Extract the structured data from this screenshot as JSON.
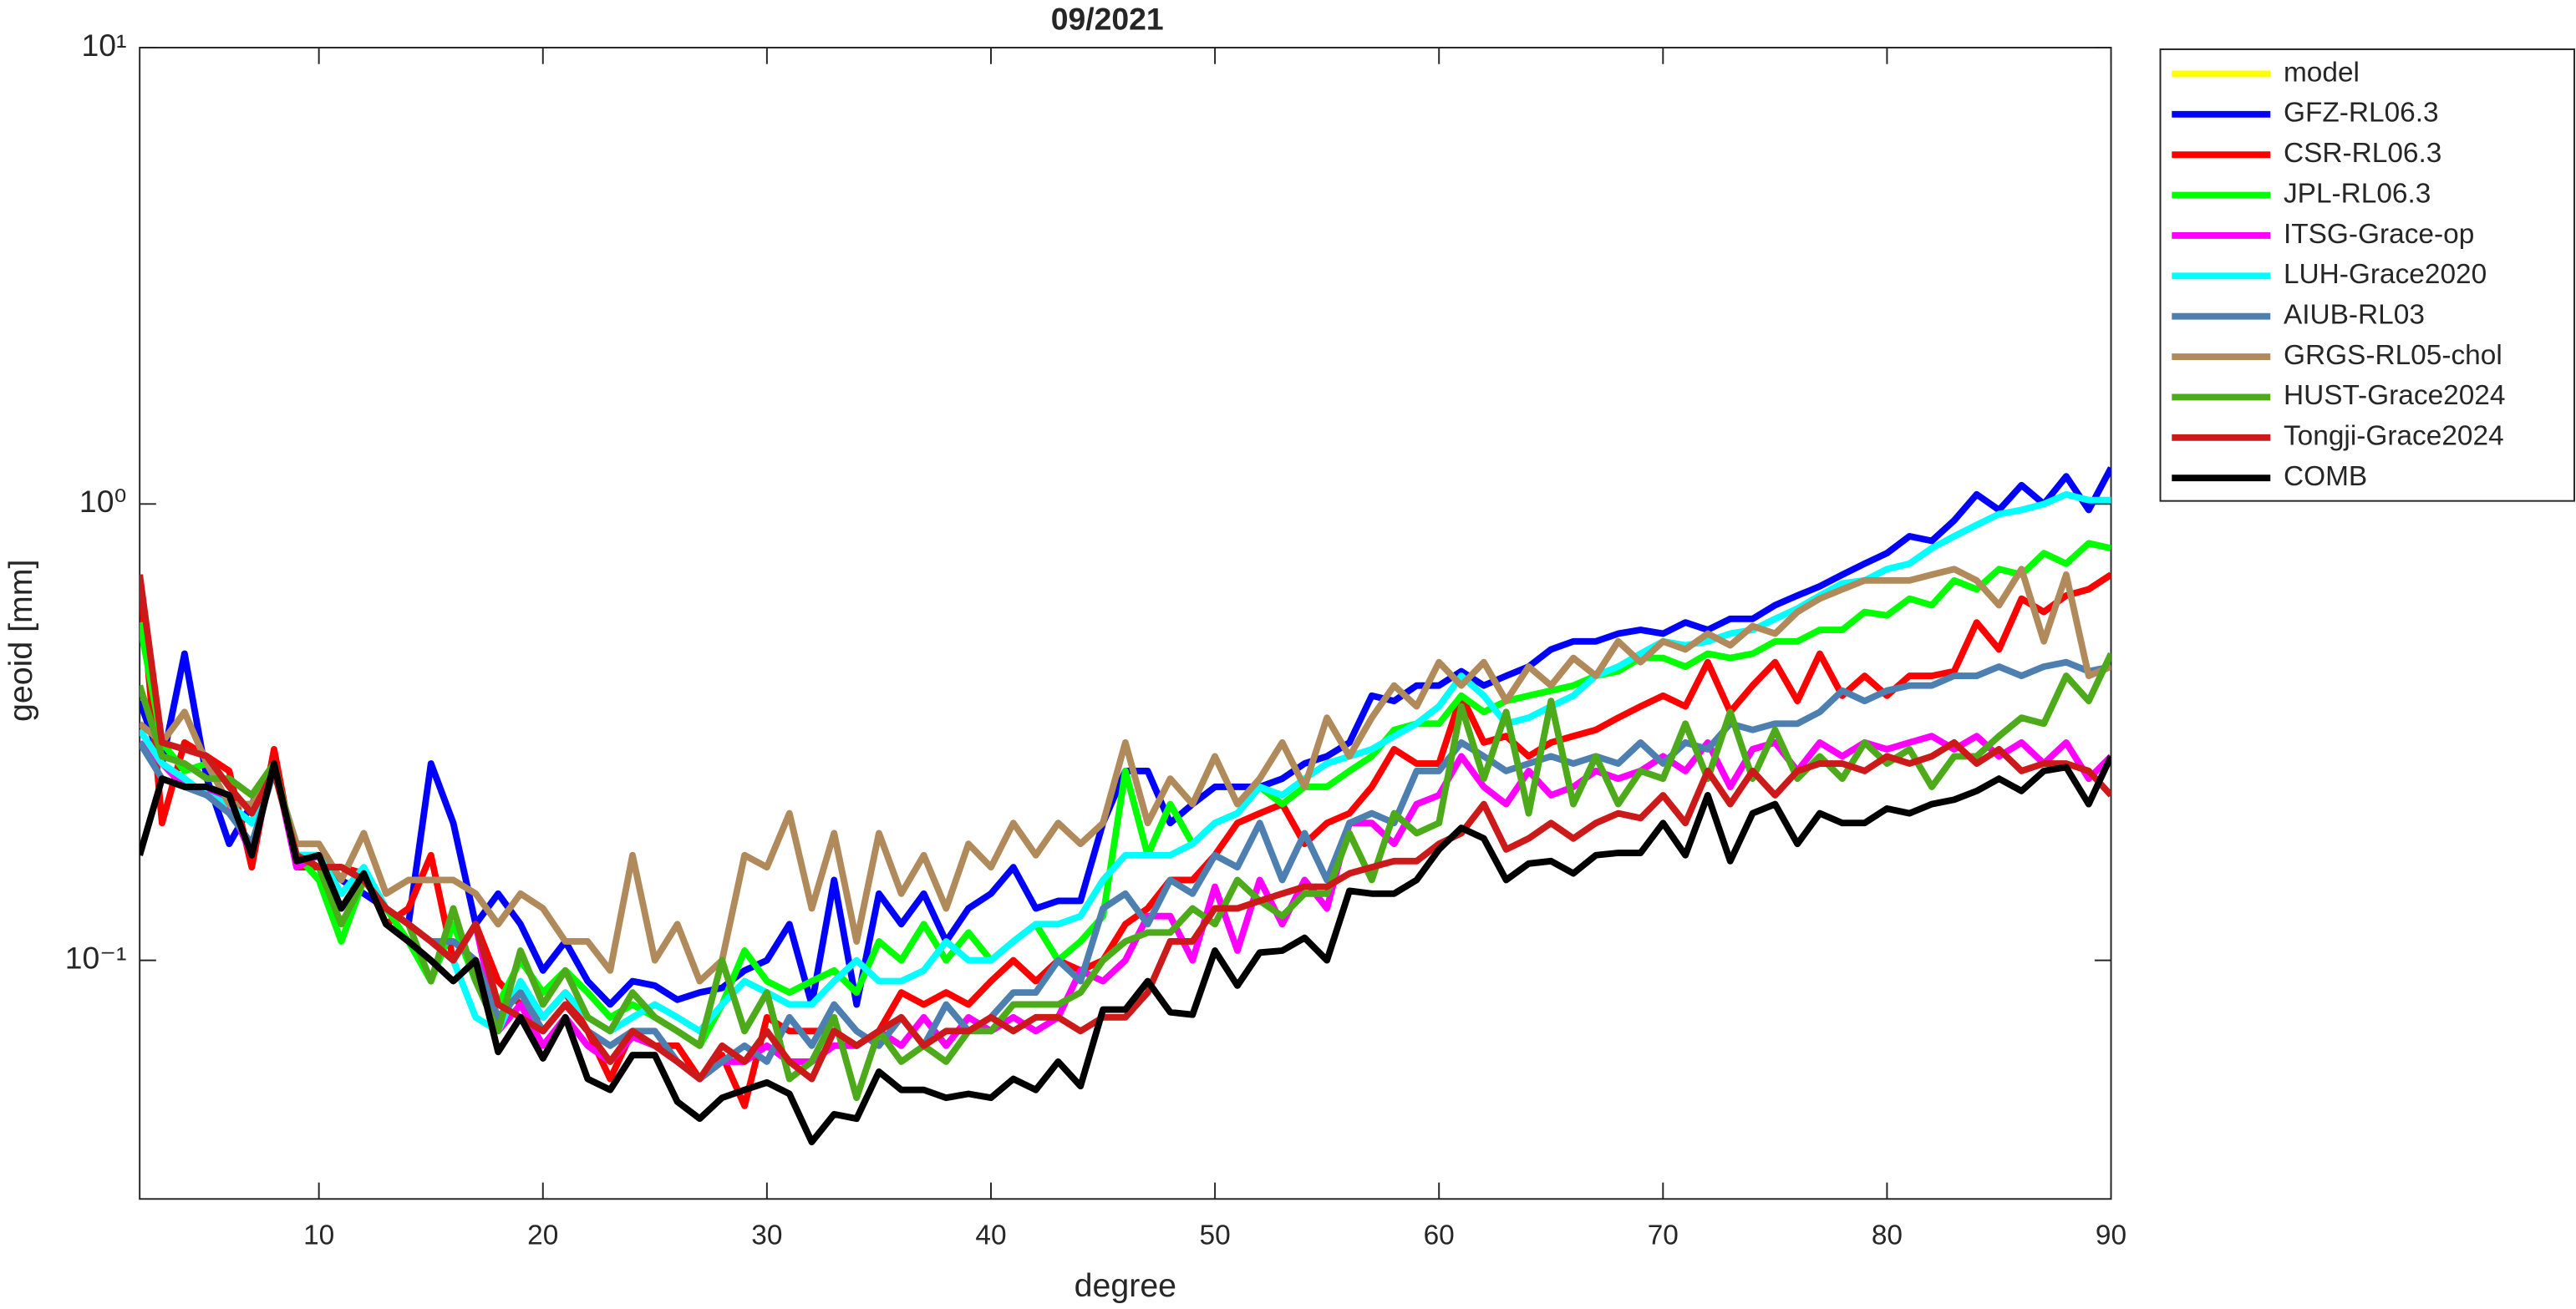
{
  "chart_data": {
    "type": "line",
    "title": "09/2021",
    "x_label": "degree",
    "y_label": "geoid [mm]",
    "x": [
      2,
      3,
      4,
      5,
      6,
      7,
      8,
      9,
      10,
      11,
      12,
      13,
      14,
      15,
      16,
      17,
      18,
      19,
      20,
      21,
      22,
      23,
      24,
      25,
      26,
      27,
      28,
      29,
      30,
      31,
      32,
      33,
      34,
      35,
      36,
      37,
      38,
      39,
      40,
      41,
      42,
      43,
      44,
      45,
      46,
      47,
      48,
      49,
      50,
      51,
      52,
      53,
      54,
      55,
      56,
      57,
      58,
      59,
      60,
      61,
      62,
      63,
      64,
      65,
      66,
      67,
      68,
      69,
      70,
      71,
      72,
      73,
      74,
      75,
      76,
      77,
      78,
      79,
      80,
      81,
      82,
      83,
      84,
      85,
      86,
      87,
      88,
      89,
      90
    ],
    "xlim": [
      2,
      90
    ],
    "xticks": [
      10,
      20,
      30,
      40,
      50,
      60,
      70,
      80,
      90
    ],
    "ylim": [
      0.03,
      10
    ],
    "log_y": true,
    "grid": false,
    "legend": "outside-right-top",
    "yticks": [
      {
        "value": 0.1,
        "label": "10⁻¹"
      },
      {
        "value": 1,
        "label": "10⁰"
      },
      {
        "value": 10,
        "label": "10¹"
      }
    ],
    "series": [
      {
        "name": "model",
        "color": "#ffff00",
        "values": [
          null,
          null,
          null,
          null,
          null,
          null,
          null,
          null,
          null,
          null,
          null,
          null,
          null,
          null,
          null,
          null,
          null,
          null,
          null,
          null,
          null,
          null,
          null,
          null,
          null,
          null,
          null,
          null,
          null,
          null,
          null,
          null,
          null,
          null,
          null,
          null,
          null,
          null,
          null,
          null,
          null,
          null,
          null,
          null,
          null,
          null,
          null,
          null,
          null,
          null,
          null,
          null,
          null,
          null,
          null,
          null,
          null,
          null,
          null,
          null,
          null,
          null,
          null,
          null,
          null,
          null,
          null,
          null,
          null,
          null,
          null,
          null,
          null,
          null,
          null,
          null,
          null,
          null,
          null,
          null,
          null,
          null,
          null,
          null,
          null,
          null,
          null,
          null,
          null
        ]
      },
      {
        "name": "GFZ-RL06.3",
        "color": "#0000ff",
        "values": [
          0.37,
          0.27,
          0.47,
          0.25,
          0.18,
          0.22,
          0.27,
          0.17,
          0.17,
          0.15,
          0.14,
          0.13,
          0.12,
          0.27,
          0.2,
          0.12,
          0.14,
          0.12,
          0.095,
          0.11,
          0.09,
          0.08,
          0.09,
          0.088,
          0.082,
          0.085,
          0.087,
          0.095,
          0.1,
          0.12,
          0.08,
          0.15,
          0.08,
          0.14,
          0.12,
          0.14,
          0.11,
          0.13,
          0.14,
          0.16,
          0.13,
          0.135,
          0.135,
          0.2,
          0.26,
          0.26,
          0.2,
          0.22,
          0.24,
          0.24,
          0.24,
          0.25,
          0.27,
          0.28,
          0.3,
          0.38,
          0.37,
          0.4,
          0.4,
          0.43,
          0.4,
          0.42,
          0.44,
          0.48,
          0.5,
          0.5,
          0.52,
          0.53,
          0.52,
          0.55,
          0.53,
          0.56,
          0.56,
          0.6,
          0.63,
          0.66,
          0.7,
          0.74,
          0.78,
          0.85,
          0.83,
          0.92,
          1.05,
          0.97,
          1.1,
          1.0,
          1.15,
          0.97,
          1.2
        ]
      },
      {
        "name": "CSR-RL06.3",
        "color": "#ff0000",
        "values": [
          0.7,
          0.2,
          0.3,
          0.28,
          0.26,
          0.16,
          0.29,
          0.16,
          0.16,
          0.16,
          0.155,
          0.12,
          0.13,
          0.17,
          0.1,
          0.12,
          0.09,
          0.08,
          0.075,
          0.085,
          0.07,
          0.055,
          0.07,
          0.065,
          0.065,
          0.055,
          0.062,
          0.048,
          0.075,
          0.07,
          0.07,
          0.07,
          0.065,
          0.07,
          0.085,
          0.08,
          0.085,
          0.08,
          0.09,
          0.1,
          0.09,
          0.1,
          0.095,
          0.1,
          0.12,
          0.13,
          0.15,
          0.15,
          0.17,
          0.2,
          0.21,
          0.22,
          0.18,
          0.2,
          0.21,
          0.24,
          0.29,
          0.27,
          0.27,
          0.38,
          0.3,
          0.31,
          0.28,
          0.3,
          0.31,
          0.32,
          0.34,
          0.36,
          0.38,
          0.36,
          0.45,
          0.35,
          0.4,
          0.45,
          0.37,
          0.47,
          0.38,
          0.42,
          0.38,
          0.42,
          0.42,
          0.43,
          0.55,
          0.48,
          0.62,
          0.58,
          0.63,
          0.65,
          0.7
        ]
      },
      {
        "name": "JPL-RL06.3",
        "color": "#00ff00",
        "values": [
          0.55,
          0.3,
          0.26,
          0.27,
          0.22,
          0.2,
          0.26,
          0.17,
          0.15,
          0.11,
          0.15,
          0.13,
          0.11,
          0.09,
          0.12,
          0.09,
          0.08,
          0.1,
          0.085,
          0.095,
          0.085,
          0.075,
          0.08,
          0.075,
          0.07,
          0.065,
          0.08,
          0.105,
          0.09,
          0.085,
          0.09,
          0.095,
          0.085,
          0.11,
          0.1,
          0.12,
          0.1,
          0.115,
          0.1,
          0.11,
          0.12,
          0.1,
          0.11,
          0.125,
          0.26,
          0.17,
          0.22,
          0.18,
          0.2,
          0.21,
          0.24,
          0.22,
          0.24,
          0.24,
          0.26,
          0.28,
          0.32,
          0.33,
          0.33,
          0.38,
          0.35,
          0.37,
          0.38,
          0.39,
          0.4,
          0.42,
          0.43,
          0.46,
          0.46,
          0.44,
          0.47,
          0.46,
          0.47,
          0.5,
          0.5,
          0.53,
          0.53,
          0.58,
          0.57,
          0.62,
          0.6,
          0.68,
          0.65,
          0.72,
          0.7,
          0.78,
          0.74,
          0.82,
          0.8
        ]
      },
      {
        "name": "ITSG-Grace-op",
        "color": "#ff00ff",
        "values": [
          0.3,
          0.27,
          0.24,
          0.24,
          0.22,
          0.17,
          0.27,
          0.16,
          0.17,
          0.13,
          0.15,
          0.13,
          0.12,
          0.11,
          0.1,
          0.12,
          0.07,
          0.08,
          0.065,
          0.075,
          0.065,
          0.06,
          0.068,
          0.065,
          0.06,
          0.055,
          0.06,
          0.06,
          0.065,
          0.06,
          0.06,
          0.065,
          0.065,
          0.07,
          0.065,
          0.075,
          0.065,
          0.075,
          0.07,
          0.075,
          0.07,
          0.075,
          0.095,
          0.09,
          0.1,
          0.125,
          0.125,
          0.1,
          0.145,
          0.105,
          0.15,
          0.12,
          0.15,
          0.13,
          0.2,
          0.2,
          0.18,
          0.22,
          0.23,
          0.28,
          0.24,
          0.22,
          0.26,
          0.23,
          0.24,
          0.26,
          0.25,
          0.26,
          0.28,
          0.26,
          0.3,
          0.24,
          0.29,
          0.3,
          0.26,
          0.3,
          0.28,
          0.3,
          0.29,
          0.3,
          0.31,
          0.29,
          0.31,
          0.28,
          0.3,
          0.27,
          0.3,
          0.25,
          0.28
        ]
      },
      {
        "name": "LUH-Grace2020",
        "color": "#00ffff",
        "values": [
          0.32,
          0.27,
          0.25,
          0.23,
          0.22,
          0.2,
          0.27,
          0.17,
          0.17,
          0.14,
          0.16,
          0.13,
          0.12,
          0.11,
          0.1,
          0.075,
          0.07,
          0.09,
          0.075,
          0.085,
          0.075,
          0.07,
          0.075,
          0.08,
          0.075,
          0.07,
          0.08,
          0.09,
          0.085,
          0.08,
          0.08,
          0.09,
          0.1,
          0.09,
          0.09,
          0.095,
          0.11,
          0.1,
          0.1,
          0.11,
          0.12,
          0.12,
          0.125,
          0.15,
          0.17,
          0.17,
          0.17,
          0.18,
          0.2,
          0.21,
          0.24,
          0.23,
          0.25,
          0.27,
          0.28,
          0.29,
          0.31,
          0.33,
          0.36,
          0.42,
          0.38,
          0.33,
          0.34,
          0.36,
          0.38,
          0.42,
          0.44,
          0.47,
          0.5,
          0.49,
          0.5,
          0.52,
          0.53,
          0.56,
          0.59,
          0.63,
          0.67,
          0.68,
          0.72,
          0.74,
          0.8,
          0.85,
          0.9,
          0.95,
          0.97,
          1.0,
          1.05,
          1.02,
          1.02
        ]
      },
      {
        "name": "AIUB-RL03",
        "color": "#4d7fb0",
        "values": [
          0.3,
          0.25,
          0.24,
          0.23,
          0.21,
          0.18,
          0.26,
          0.17,
          0.16,
          0.13,
          0.15,
          0.13,
          0.12,
          0.11,
          0.11,
          0.1,
          0.075,
          0.085,
          0.07,
          0.08,
          0.07,
          0.065,
          0.07,
          0.07,
          0.06,
          0.055,
          0.06,
          0.065,
          0.06,
          0.075,
          0.065,
          0.08,
          0.07,
          0.065,
          0.075,
          0.065,
          0.08,
          0.07,
          0.075,
          0.085,
          0.085,
          0.1,
          0.09,
          0.13,
          0.14,
          0.12,
          0.15,
          0.14,
          0.17,
          0.16,
          0.2,
          0.15,
          0.19,
          0.15,
          0.2,
          0.21,
          0.2,
          0.26,
          0.26,
          0.3,
          0.28,
          0.26,
          0.27,
          0.28,
          0.27,
          0.28,
          0.27,
          0.3,
          0.27,
          0.3,
          0.29,
          0.33,
          0.32,
          0.33,
          0.33,
          0.35,
          0.39,
          0.37,
          0.39,
          0.4,
          0.4,
          0.42,
          0.42,
          0.44,
          0.42,
          0.44,
          0.45,
          0.43,
          0.44
        ]
      },
      {
        "name": "GRGS-RL05-chol",
        "color": "#b08a5a",
        "values": [
          0.33,
          0.3,
          0.35,
          0.27,
          0.22,
          0.22,
          0.26,
          0.18,
          0.18,
          0.15,
          0.19,
          0.14,
          0.15,
          0.15,
          0.15,
          0.14,
          0.12,
          0.14,
          0.13,
          0.11,
          0.11,
          0.095,
          0.17,
          0.1,
          0.12,
          0.09,
          0.1,
          0.17,
          0.16,
          0.21,
          0.13,
          0.19,
          0.11,
          0.19,
          0.14,
          0.17,
          0.13,
          0.18,
          0.16,
          0.2,
          0.17,
          0.2,
          0.18,
          0.2,
          0.3,
          0.2,
          0.25,
          0.22,
          0.28,
          0.22,
          0.25,
          0.3,
          0.24,
          0.34,
          0.28,
          0.34,
          0.4,
          0.36,
          0.45,
          0.4,
          0.45,
          0.37,
          0.44,
          0.4,
          0.46,
          0.42,
          0.5,
          0.45,
          0.5,
          0.48,
          0.52,
          0.49,
          0.54,
          0.52,
          0.58,
          0.62,
          0.65,
          0.68,
          0.68,
          0.68,
          0.7,
          0.72,
          0.68,
          0.6,
          0.72,
          0.5,
          0.7,
          0.42,
          0.44
        ]
      },
      {
        "name": "HUST-Grace2024",
        "color": "#4daa1a",
        "values": [
          0.4,
          0.28,
          0.27,
          0.25,
          0.25,
          0.23,
          0.27,
          0.17,
          0.16,
          0.12,
          0.15,
          0.13,
          0.12,
          0.09,
          0.13,
          0.09,
          0.07,
          0.105,
          0.08,
          0.095,
          0.075,
          0.07,
          0.085,
          0.075,
          0.07,
          0.065,
          0.1,
          0.07,
          0.085,
          0.055,
          0.06,
          0.075,
          0.05,
          0.07,
          0.06,
          0.065,
          0.06,
          0.07,
          0.07,
          0.08,
          0.08,
          0.08,
          0.085,
          0.1,
          0.11,
          0.115,
          0.115,
          0.13,
          0.12,
          0.15,
          0.135,
          0.125,
          0.14,
          0.14,
          0.19,
          0.15,
          0.21,
          0.19,
          0.2,
          0.36,
          0.25,
          0.35,
          0.21,
          0.37,
          0.22,
          0.28,
          0.22,
          0.26,
          0.25,
          0.33,
          0.25,
          0.35,
          0.25,
          0.32,
          0.25,
          0.28,
          0.25,
          0.3,
          0.27,
          0.29,
          0.24,
          0.28,
          0.28,
          0.31,
          0.34,
          0.33,
          0.42,
          0.37,
          0.47
        ]
      },
      {
        "name": "Tongji-Grace2024",
        "color": "#cc1a1a",
        "values": [
          0.7,
          0.3,
          0.29,
          0.28,
          0.24,
          0.21,
          0.26,
          0.17,
          0.16,
          0.16,
          0.15,
          0.13,
          0.12,
          0.11,
          0.1,
          0.12,
          0.08,
          0.075,
          0.07,
          0.08,
          0.07,
          0.06,
          0.07,
          0.065,
          0.06,
          0.055,
          0.065,
          0.06,
          0.07,
          0.06,
          0.055,
          0.07,
          0.065,
          0.07,
          0.075,
          0.065,
          0.07,
          0.07,
          0.075,
          0.07,
          0.075,
          0.075,
          0.07,
          0.075,
          0.075,
          0.085,
          0.11,
          0.11,
          0.13,
          0.13,
          0.135,
          0.14,
          0.145,
          0.145,
          0.155,
          0.16,
          0.165,
          0.165,
          0.18,
          0.19,
          0.22,
          0.175,
          0.185,
          0.2,
          0.185,
          0.2,
          0.21,
          0.205,
          0.23,
          0.2,
          0.26,
          0.22,
          0.26,
          0.23,
          0.26,
          0.27,
          0.27,
          0.26,
          0.28,
          0.27,
          0.28,
          0.3,
          0.27,
          0.29,
          0.26,
          0.27,
          0.27,
          0.26,
          0.23
        ]
      },
      {
        "name": "COMB",
        "color": "#000000",
        "values": [
          0.17,
          0.25,
          0.24,
          0.24,
          0.23,
          0.17,
          0.27,
          0.165,
          0.17,
          0.13,
          0.155,
          0.12,
          0.11,
          0.1,
          0.09,
          0.1,
          0.063,
          0.075,
          0.061,
          0.075,
          0.055,
          0.052,
          0.062,
          0.062,
          0.049,
          0.045,
          0.05,
          0.052,
          0.054,
          0.051,
          0.04,
          0.046,
          0.045,
          0.057,
          0.052,
          0.052,
          0.05,
          0.051,
          0.05,
          0.055,
          0.052,
          0.06,
          0.053,
          0.078,
          0.078,
          0.09,
          0.077,
          0.076,
          0.105,
          0.088,
          0.104,
          0.105,
          0.112,
          0.1,
          0.142,
          0.14,
          0.14,
          0.15,
          0.175,
          0.195,
          0.185,
          0.15,
          0.163,
          0.165,
          0.155,
          0.17,
          0.172,
          0.172,
          0.2,
          0.17,
          0.23,
          0.165,
          0.21,
          0.22,
          0.18,
          0.21,
          0.2,
          0.2,
          0.215,
          0.21,
          0.22,
          0.225,
          0.235,
          0.25,
          0.235,
          0.26,
          0.265,
          0.22,
          0.28
        ]
      }
    ]
  }
}
